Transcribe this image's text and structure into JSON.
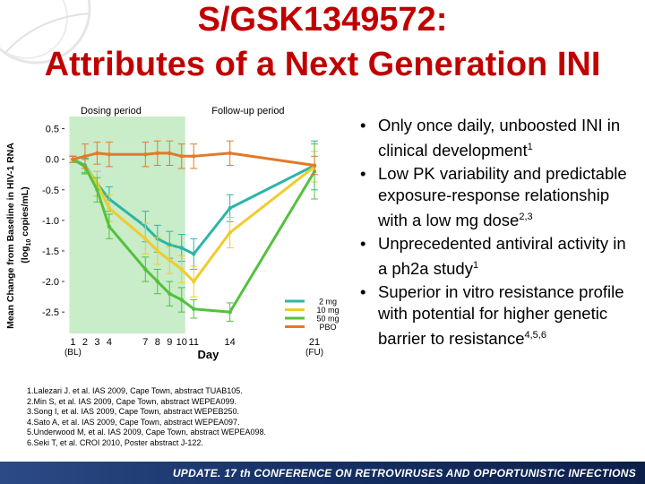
{
  "title_line1": "S/GSK1349572:",
  "title_line2": "Attributes of a Next Generation INI",
  "bullets": [
    {
      "text": "Only once daily, unboosted INI in clinical development",
      "sup": "1"
    },
    {
      "text": "Low PK variability and predictable exposure-response relationship with a low mg dose",
      "sup": "2,3"
    },
    {
      "text": "Unprecedented antiviral activity in a ph2a study",
      "sup": "1"
    },
    {
      "text": "Superior in vitro resistance profile with potential for higher genetic barrier to resistance",
      "sup": "4,5,6"
    }
  ],
  "references": [
    "1.Lalezari J. et al. IAS 2009, Cape Town, abstract TUAB105.",
    "2.Min S, et al. IAS 2009, Cape Town, abstract WEPEA099.",
    "3.Song I, et al. IAS 2009, Cape Town, abstract WEPEB250.",
    "4.Sato A, et al. IAS 2009, Cape Town, abstract WEPEA097.",
    "5.Underwood M, et al. IAS 2009, Cape Town, abstract WEPEA098.",
    "6.Seki T, et al. CROI 2010, Poster abstract J-122."
  ],
  "banner": "UPDATE. 17 th CONFERENCE ON RETROVIRUSES AND OPPORTUNISTIC INFECTIONS",
  "colors": {
    "title": "#c00000",
    "dosing_shade": "#c9ecc9",
    "mg2": "#2cb5a8",
    "mg10": "#f0cc2c",
    "mg50": "#52c23c",
    "pbo": "#e27a2a",
    "banner": "#1a3770"
  },
  "chart_data": {
    "type": "line",
    "xlabel": "Day",
    "ylabel_line1": "Mean Change from Baseline in HIV-1 RNA",
    "ylabel_line2_pre": "(log",
    "ylabel_sub": "10",
    "ylabel_line2_post": " copies/mL)",
    "period_labels": {
      "dosing": "Dosing period",
      "followup": "Follow-up period"
    },
    "dosing_period_days": [
      1,
      10
    ],
    "xlim": [
      0.3,
      23
    ],
    "ylim": [
      -2.85,
      0.7
    ],
    "y_ticks": [
      {
        "v": 0.5,
        "label": "0.5"
      },
      {
        "v": 0.0,
        "label": "0.0"
      },
      {
        "v": -0.5,
        "label": "-0.5"
      },
      {
        "v": -1.0,
        "label": "-1.0"
      },
      {
        "v": -1.5,
        "label": "-1.5"
      },
      {
        "v": -2.0,
        "label": "-2.0"
      },
      {
        "v": -2.5,
        "label": "-2.5"
      }
    ],
    "x_ticks": [
      {
        "v": 1,
        "label": "1"
      },
      {
        "v": 2,
        "label": "2"
      },
      {
        "v": 3,
        "label": "3"
      },
      {
        "v": 4,
        "label": "4"
      },
      {
        "v": 7,
        "label": "7"
      },
      {
        "v": 8,
        "label": "8"
      },
      {
        "v": 9,
        "label": "9"
      },
      {
        "v": 10,
        "label": "10"
      },
      {
        "v": 11,
        "label": "11"
      },
      {
        "v": 14,
        "label": "14"
      },
      {
        "v": 21,
        "label": "21"
      }
    ],
    "x_tick_sublabels": [
      {
        "v": 1,
        "label": "(BL)"
      },
      {
        "v": 21,
        "label": "(FU)"
      }
    ],
    "legend_position": "bottom-right",
    "series": [
      {
        "name": "2 mg",
        "color": "#2cb5a8",
        "x": [
          1,
          2,
          3,
          4,
          7,
          8,
          9,
          10,
          11,
          14,
          21
        ],
        "y": [
          0,
          -0.1,
          -0.4,
          -0.65,
          -1.1,
          -1.3,
          -1.4,
          -1.45,
          -1.55,
          -0.8,
          -0.1
        ],
        "err": [
          0.05,
          0.12,
          0.2,
          0.2,
          0.25,
          0.22,
          0.22,
          0.22,
          0.25,
          0.22,
          0.4
        ]
      },
      {
        "name": "10 mg",
        "color": "#f0cc2c",
        "x": [
          1,
          2,
          3,
          4,
          7,
          8,
          9,
          10,
          11,
          14,
          21
        ],
        "y": [
          0,
          -0.12,
          -0.4,
          -0.8,
          -1.3,
          -1.5,
          -1.65,
          -1.8,
          -2.0,
          -1.2,
          -0.12
        ],
        "err": [
          0.05,
          0.12,
          0.2,
          0.22,
          0.25,
          0.22,
          0.22,
          0.22,
          0.25,
          0.25,
          0.25
        ]
      },
      {
        "name": "50 mg",
        "color": "#52c23c",
        "x": [
          1,
          2,
          3,
          4,
          7,
          8,
          9,
          10,
          11,
          14,
          21
        ],
        "y": [
          0,
          -0.12,
          -0.5,
          -1.1,
          -1.8,
          -2.0,
          -2.2,
          -2.3,
          -2.45,
          -2.5,
          -0.2
        ],
        "err": [
          0.05,
          0.12,
          0.2,
          0.2,
          0.2,
          0.2,
          0.2,
          0.2,
          0.15,
          0.15,
          0.45
        ]
      },
      {
        "name": "PBO",
        "color": "#e27a2a",
        "x": [
          1,
          2,
          3,
          4,
          7,
          8,
          9,
          10,
          11,
          14,
          21
        ],
        "y": [
          0,
          0.05,
          0.1,
          0.08,
          0.08,
          0.1,
          0.1,
          0.05,
          0.05,
          0.1,
          -0.1
        ],
        "err": [
          0.05,
          0.2,
          0.18,
          0.2,
          0.2,
          0.2,
          0.2,
          0.2,
          0.2,
          0.2,
          0.15
        ]
      }
    ]
  }
}
